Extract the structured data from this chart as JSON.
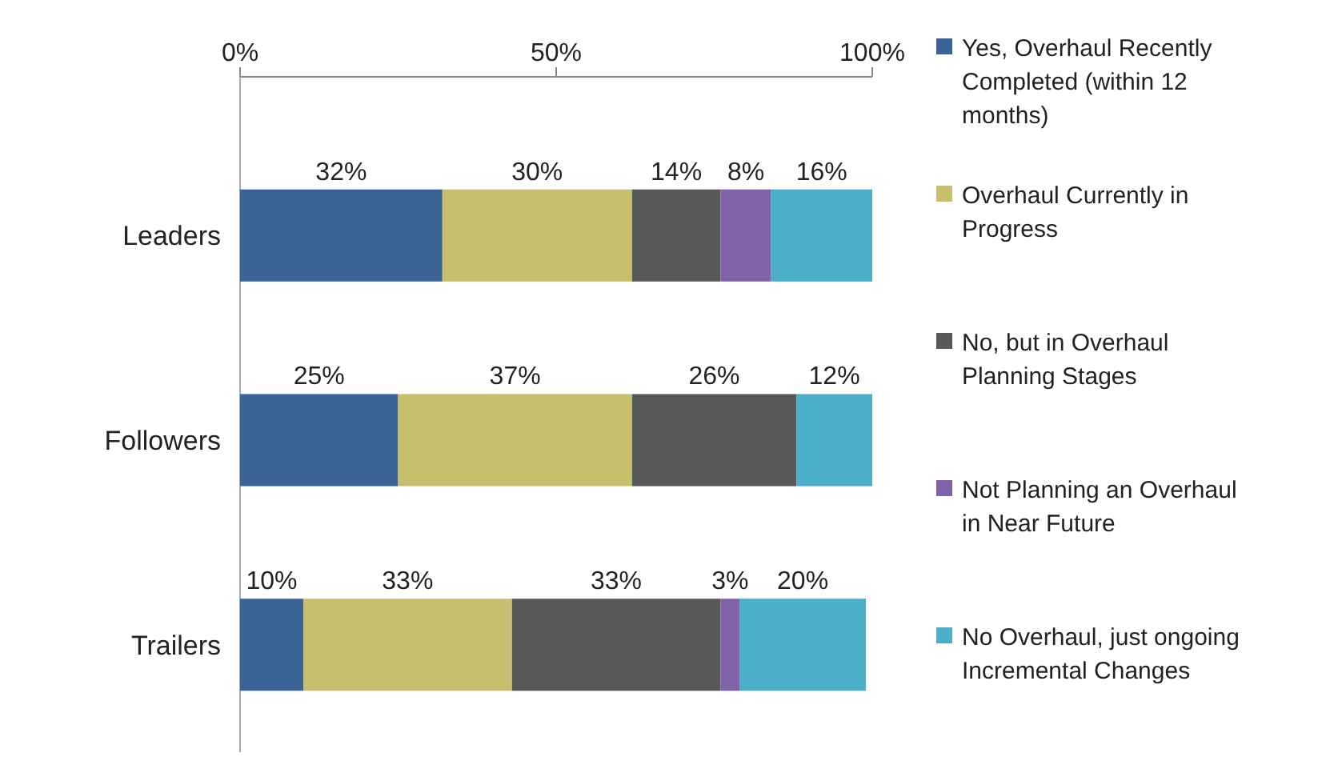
{
  "chart_data": {
    "type": "bar",
    "orientation": "horizontal",
    "stacked": true,
    "legend": "right",
    "categories": [
      "Leaders",
      "Followers",
      "Trailers"
    ],
    "xlim": [
      0,
      100
    ],
    "xticks": [
      {
        "value": 0,
        "label": "0%"
      },
      {
        "value": 50,
        "label": "50%"
      },
      {
        "value": 100,
        "label": "100%"
      }
    ],
    "series": [
      {
        "name": "Yes, Overhaul Recently Completed (within 12 months)",
        "color": "#3a6496",
        "values": [
          32,
          25,
          10
        ],
        "value_labels": [
          "32%",
          "25%",
          "10%"
        ]
      },
      {
        "name": "Overhaul Currently in Progress",
        "color": "#c8bf6e",
        "values": [
          30,
          37,
          33
        ],
        "value_labels": [
          "30%",
          "37%",
          "33%"
        ]
      },
      {
        "name": "No, but in Overhaul Planning Stages",
        "color": "#595959",
        "values": [
          14,
          26,
          33
        ],
        "value_labels": [
          "14%",
          "26%",
          "33%"
        ]
      },
      {
        "name": "Not Planning an Overhaul in Near Future",
        "color": "#7f62a8",
        "values": [
          8,
          null,
          3
        ],
        "value_labels": [
          "8%",
          null,
          "3%"
        ]
      },
      {
        "name": "No Overhaul, just ongoing Incremental Changes",
        "color": "#4bafc8",
        "values": [
          16,
          12,
          20
        ],
        "value_labels": [
          "16%",
          "12%",
          "20%"
        ]
      }
    ]
  }
}
